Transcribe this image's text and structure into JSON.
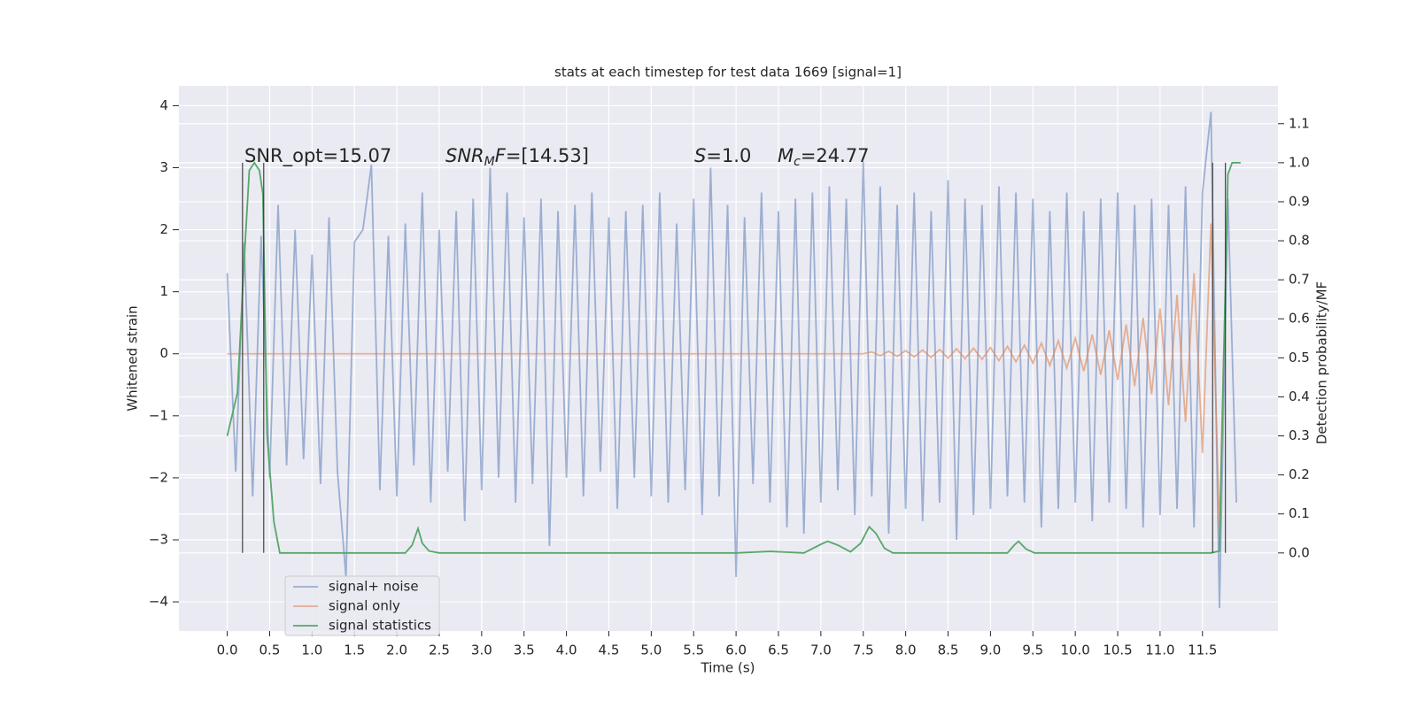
{
  "chart_data": {
    "type": "line",
    "title": "stats at each timestep for test data 1669 [signal=1]",
    "xlabel": "Time (s)",
    "ylabel": "Whitened strain",
    "y2label": "Detection probability/MF",
    "xlim": [
      -0.57,
      12.39
    ],
    "ylim": [
      -4.47,
      4.32
    ],
    "y2lim": [
      -0.2,
      1.197
    ],
    "grid": true,
    "legend": "lower left",
    "xticks": [
      {
        "value": 0,
        "label": "0.0"
      },
      {
        "value": 0.5,
        "label": "0.5"
      },
      {
        "value": 1,
        "label": "1.0"
      },
      {
        "value": 1.5,
        "label": "1.5"
      },
      {
        "value": 2,
        "label": "2.0"
      },
      {
        "value": 2.5,
        "label": "2.5"
      },
      {
        "value": 3,
        "label": "3.0"
      },
      {
        "value": 3.5,
        "label": "3.5"
      },
      {
        "value": 4,
        "label": "4.0"
      },
      {
        "value": 4.5,
        "label": "4.5"
      },
      {
        "value": 5,
        "label": "5.0"
      },
      {
        "value": 5.5,
        "label": "5.5"
      },
      {
        "value": 6,
        "label": "6.0"
      },
      {
        "value": 6.5,
        "label": "6.5"
      },
      {
        "value": 7,
        "label": "7.0"
      },
      {
        "value": 7.5,
        "label": "7.5"
      },
      {
        "value": 8,
        "label": "8.0"
      },
      {
        "value": 8.5,
        "label": "8.5"
      },
      {
        "value": 9,
        "label": "9.0"
      },
      {
        "value": 9.5,
        "label": "9.5"
      },
      {
        "value": 10,
        "label": "10.0"
      },
      {
        "value": 10.5,
        "label": "10.5"
      },
      {
        "value": 11,
        "label": "11.0"
      },
      {
        "value": 11.5,
        "label": "11.5"
      }
    ],
    "yticks": [
      {
        "value": -4,
        "label": "−4"
      },
      {
        "value": -3,
        "label": "−3"
      },
      {
        "value": -2,
        "label": "−2"
      },
      {
        "value": -1,
        "label": "−1"
      },
      0,
      1,
      2,
      3,
      4
    ],
    "y2ticks": [
      {
        "value": 0,
        "label": "0.0"
      },
      {
        "value": 0.1,
        "label": "0.1"
      },
      {
        "value": 0.2,
        "label": "0.2"
      },
      {
        "value": 0.3,
        "label": "0.3"
      },
      {
        "value": 0.4,
        "label": "0.4"
      },
      {
        "value": 0.5,
        "label": "0.5"
      },
      {
        "value": 0.6,
        "label": "0.6"
      },
      {
        "value": 0.7,
        "label": "0.7"
      },
      {
        "value": 0.8,
        "label": "0.8"
      },
      {
        "value": 0.9,
        "label": "0.9"
      },
      {
        "value": 1,
        "label": "1.0"
      },
      {
        "value": 1.1,
        "label": "1.1"
      }
    ],
    "series": [
      {
        "name": "signal+ noise",
        "color": "#4c72b0",
        "opacity": 0.5,
        "x": [
          0,
          0.1,
          0.2,
          0.3,
          0.4,
          0.5,
          0.6,
          0.7,
          0.8,
          0.9,
          1,
          1.1,
          1.2,
          1.3,
          1.4,
          1.5,
          1.6,
          1.7,
          1.8,
          1.9,
          2,
          2.1,
          2.2,
          2.3,
          2.4,
          2.5,
          2.6,
          2.7,
          2.8,
          2.9,
          3,
          3.1,
          3.2,
          3.3,
          3.4,
          3.5,
          3.6,
          3.7,
          3.8,
          3.9,
          4,
          4.1,
          4.2,
          4.3,
          4.4,
          4.5,
          4.6,
          4.7,
          4.8,
          4.9,
          5,
          5.1,
          5.2,
          5.3,
          5.4,
          5.5,
          5.6,
          5.7,
          5.8,
          5.9,
          6,
          6.1,
          6.2,
          6.3,
          6.4,
          6.5,
          6.6,
          6.7,
          6.8,
          6.9,
          7,
          7.1,
          7.2,
          7.3,
          7.4,
          7.5,
          7.6,
          7.7,
          7.8,
          7.9,
          8,
          8.1,
          8.2,
          8.3,
          8.4,
          8.5,
          8.6,
          8.7,
          8.8,
          8.9,
          9,
          9.1,
          9.2,
          9.3,
          9.4,
          9.5,
          9.6,
          9.7,
          9.8,
          9.9,
          10,
          10.1,
          10.2,
          10.3,
          10.4,
          10.5,
          10.6,
          10.7,
          10.8,
          10.9,
          11,
          11.1,
          11.2,
          11.3,
          11.4,
          11.5,
          11.6,
          11.7,
          11.8,
          11.9
        ],
        "values": [
          1.3,
          -1.9,
          1.8,
          -2.3,
          1.9,
          -2.0,
          2.4,
          -1.8,
          2.0,
          -1.7,
          1.6,
          -2.1,
          2.2,
          -1.9,
          -3.6,
          1.8,
          2.0,
          3.05,
          -2.2,
          1.9,
          -2.3,
          2.1,
          -1.8,
          2.6,
          -2.4,
          2.0,
          -1.9,
          2.3,
          -2.7,
          2.5,
          -2.2,
          3.0,
          -2.0,
          2.6,
          -2.4,
          2.2,
          -2.1,
          2.5,
          -3.1,
          2.3,
          -2.0,
          2.4,
          -2.3,
          2.6,
          -1.9,
          2.2,
          -2.5,
          2.3,
          -2.0,
          2.4,
          -2.3,
          2.6,
          -2.4,
          2.1,
          -2.2,
          2.5,
          -2.6,
          3.0,
          -2.3,
          2.4,
          -3.6,
          2.2,
          -2.1,
          2.6,
          -2.4,
          2.3,
          -2.8,
          2.5,
          -2.9,
          2.6,
          -2.4,
          2.7,
          -2.2,
          2.5,
          -2.6,
          3.1,
          -2.3,
          2.7,
          -2.9,
          2.4,
          -2.5,
          2.6,
          -2.7,
          2.3,
          -2.4,
          2.8,
          -3.0,
          2.5,
          -2.6,
          2.4,
          -2.5,
          2.7,
          -2.3,
          2.6,
          -2.4,
          2.5,
          -2.8,
          2.3,
          -2.5,
          2.6,
          -2.4,
          2.3,
          -2.7,
          2.5,
          -2.4,
          2.6,
          -2.5,
          2.4,
          -2.8,
          2.5,
          -2.6,
          2.4,
          -2.5,
          2.7,
          -2.8,
          2.6,
          3.9,
          -4.1,
          2.5,
          -2.4
        ]
      },
      {
        "name": "signal only",
        "color": "#dd8452",
        "opacity": 0.6,
        "x": [
          0,
          7.5,
          7.6,
          7.7,
          7.8,
          7.9,
          8,
          8.1,
          8.2,
          8.3,
          8.4,
          8.5,
          8.6,
          8.7,
          8.8,
          8.9,
          9,
          9.1,
          9.2,
          9.3,
          9.4,
          9.5,
          9.6,
          9.7,
          9.8,
          9.9,
          10,
          10.1,
          10.2,
          10.3,
          10.4,
          10.5,
          10.6,
          10.7,
          10.8,
          10.9,
          11,
          11.1,
          11.2,
          11.3,
          11.4,
          11.5,
          11.6,
          11.7,
          11.75
        ],
        "values": [
          0,
          0,
          0.03,
          -0.03,
          0.04,
          -0.04,
          0.05,
          -0.05,
          0.06,
          -0.06,
          0.07,
          -0.07,
          0.08,
          -0.08,
          0.09,
          -0.09,
          0.1,
          -0.11,
          0.12,
          -0.13,
          0.14,
          -0.15,
          0.17,
          -0.19,
          0.21,
          -0.23,
          0.25,
          -0.28,
          0.31,
          -0.34,
          0.38,
          -0.42,
          0.47,
          -0.52,
          0.58,
          -0.65,
          0.73,
          -0.83,
          0.95,
          -1.1,
          1.3,
          -1.6,
          2.1,
          -2.9,
          0
        ]
      },
      {
        "name": "signal statistics",
        "color": "#55a868",
        "opacity": 1,
        "axis": "y2",
        "x": [
          0,
          0.12,
          0.2,
          0.26,
          0.32,
          0.38,
          0.42,
          0.47,
          0.55,
          0.62,
          2.1,
          2.18,
          2.25,
          2.3,
          2.38,
          2.5,
          5,
          6,
          6.4,
          6.8,
          7.0,
          7.08,
          7.2,
          7.35,
          7.47,
          7.57,
          7.65,
          7.75,
          7.85,
          9.2,
          9.28,
          9.33,
          9.42,
          9.52,
          11.6,
          11.7,
          11.75,
          11.8,
          11.85,
          11.95
        ],
        "values": [
          0.3,
          0.41,
          0.75,
          0.98,
          1.0,
          0.98,
          0.92,
          0.3,
          0.08,
          0.0,
          0.0,
          0.02,
          0.063,
          0.025,
          0.005,
          0.0,
          0.0,
          0.0,
          0.004,
          0.0,
          0.022,
          0.03,
          0.02,
          0.003,
          0.025,
          0.067,
          0.05,
          0.012,
          0.0,
          0.0,
          0.02,
          0.03,
          0.01,
          0.0,
          0.0,
          0.005,
          0.5,
          0.97,
          1.0,
          1.0
        ]
      }
    ],
    "vlines": {
      "x": [
        0.18,
        0.43,
        11.62,
        11.77
      ],
      "y2": [
        0,
        1.0
      ]
    },
    "annotations": [
      {
        "parts": [
          {
            "text": "SNR_opt=15.07"
          }
        ]
      },
      {
        "parts": [
          {
            "text": "SNR",
            "style": "italic"
          },
          {
            "text": "M",
            "style": "italic-sub"
          },
          {
            "text": "F",
            "style": "italic"
          },
          {
            "text": "=[14.53]"
          }
        ]
      },
      {
        "parts": [
          {
            "text": "S",
            "style": "italic"
          },
          {
            "text": "=1.0"
          }
        ]
      },
      {
        "parts": [
          {
            "text": "M",
            "style": "italic"
          },
          {
            "text": "c",
            "style": "italic-sub"
          },
          {
            "text": "=24.77"
          }
        ]
      }
    ]
  }
}
